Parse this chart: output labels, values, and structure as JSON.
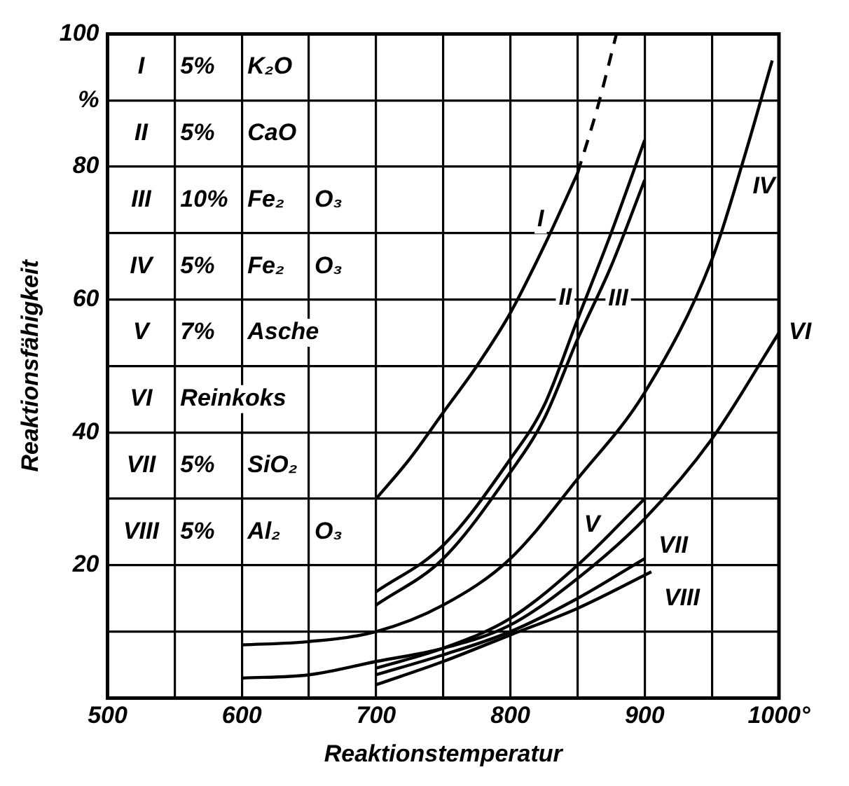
{
  "chart_data": {
    "type": "line",
    "xlabel": "Reaktionstemperatur",
    "ylabel": "Reaktionsfähigkeit",
    "xlim": [
      500,
      1000
    ],
    "ylim": [
      0,
      100
    ],
    "xticks": [
      500,
      {
        "value": 550,
        "label": null
      },
      600,
      {
        "value": 650,
        "label": null
      },
      700,
      {
        "value": 750,
        "label": null
      },
      800,
      {
        "value": 850,
        "label": null
      },
      900,
      {
        "value": 950,
        "label": null
      },
      {
        "value": 1000,
        "label": "1000°"
      }
    ],
    "yticks": [
      {
        "value": 0,
        "label": null
      },
      {
        "value": 10,
        "label": null
      },
      20,
      {
        "value": 30,
        "label": null
      },
      40,
      {
        "value": 50,
        "label": null
      },
      60,
      {
        "value": 70,
        "label": null
      },
      80,
      {
        "value": 90,
        "label": "%"
      },
      100
    ],
    "grid": true,
    "legend": false,
    "marker": "none",
    "annotations": [
      "I 5% K₂O",
      "II 5% CaO",
      "III 10% Fe₂ O₃",
      "IV 5% Fe₂ O₃",
      "V 7% Asche",
      "VI Reinkoks",
      "VII 5% SiO₂",
      "VIII 5% Al₂ O₃"
    ],
    "series": [
      {
        "name": "I",
        "color": "#000000",
        "x": [
          700,
          725,
          750,
          775,
          800,
          825,
          850
        ],
        "values": [
          30,
          36,
          43,
          50,
          58,
          68,
          79
        ]
      },
      {
        "color": "#000000",
        "line_style": "dashed",
        "x": [
          850,
          865,
          879
        ],
        "values": [
          79,
          89,
          100
        ]
      },
      {
        "name": "II",
        "color": "#000000",
        "x": [
          700,
          750,
          800,
          825,
          850,
          875,
          900
        ],
        "values": [
          16,
          23,
          36,
          44,
          57,
          70,
          84
        ]
      },
      {
        "name": "III",
        "color": "#000000",
        "x": [
          700,
          750,
          800,
          825,
          850,
          875,
          900
        ],
        "values": [
          14,
          21,
          34,
          42,
          54,
          65,
          78
        ]
      },
      {
        "name": "IV",
        "color": "#000000",
        "x": [
          600,
          650,
          700,
          750,
          800,
          850,
          900,
          950,
          975,
          995
        ],
        "values": [
          8,
          8.5,
          10,
          14,
          21,
          33,
          46,
          66,
          82,
          96
        ]
      },
      {
        "name": "V",
        "color": "#000000",
        "x": [
          700,
          750,
          800,
          850,
          900
        ],
        "values": [
          4.5,
          7.5,
          12,
          20,
          30
        ]
      },
      {
        "name": "VI",
        "color": "#000000",
        "x": [
          600,
          650,
          700,
          750,
          800,
          850,
          900,
          950,
          1000
        ],
        "values": [
          3,
          3.5,
          5.5,
          7.5,
          11,
          18,
          27,
          39,
          55
        ]
      },
      {
        "name": "VII",
        "color": "#000000",
        "x": [
          700,
          750,
          800,
          850,
          900
        ],
        "values": [
          3.5,
          6.5,
          10,
          15,
          21
        ]
      },
      {
        "name": "VIII",
        "color": "#000000",
        "x": [
          700,
          750,
          800,
          850,
          905
        ],
        "values": [
          2,
          5.5,
          9.5,
          13.5,
          19
        ]
      }
    ]
  }
}
